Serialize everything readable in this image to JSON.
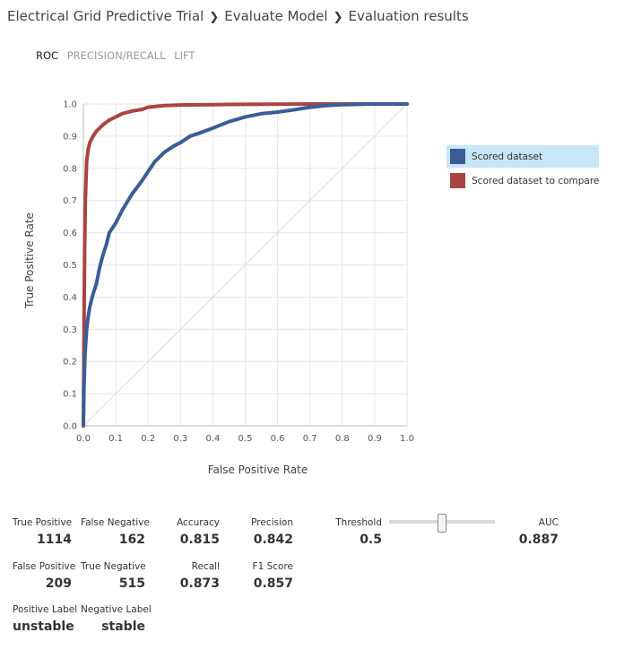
{
  "breadcrumb": [
    "Electrical Grid Predictive Trial",
    "Evaluate Model",
    "Evaluation results"
  ],
  "tabs": [
    {
      "label": "ROC",
      "active": true
    },
    {
      "label": "PRECISION/RECALL",
      "active": false
    },
    {
      "label": "LIFT",
      "active": false
    }
  ],
  "legend": [
    {
      "label": "Scored dataset",
      "color": "#3a5d96",
      "selected": true
    },
    {
      "label": "Scored dataset to compare",
      "color": "#a94442",
      "selected": false
    }
  ],
  "chart_data": {
    "type": "line",
    "xlabel": "False Positive Rate",
    "ylabel": "True Positive Rate",
    "xlim": [
      0,
      1
    ],
    "ylim": [
      0,
      1
    ],
    "xticks": [
      "0.0",
      "0.1",
      "0.2",
      "0.3",
      "0.4",
      "0.5",
      "0.6",
      "0.7",
      "0.8",
      "0.9",
      "1.0"
    ],
    "yticks": [
      "0.0",
      "0.1",
      "0.2",
      "0.3",
      "0.4",
      "0.5",
      "0.6",
      "0.7",
      "0.8",
      "0.9",
      "1.0"
    ],
    "grid": true,
    "legend_position": "right",
    "diagonal_reference": true,
    "series": [
      {
        "name": "Scored dataset",
        "color": "#3a5d96",
        "x": [
          0,
          0.002,
          0.005,
          0.01,
          0.015,
          0.02,
          0.03,
          0.04,
          0.05,
          0.06,
          0.07,
          0.08,
          0.1,
          0.12,
          0.15,
          0.18,
          0.2,
          0.22,
          0.25,
          0.28,
          0.3,
          0.33,
          0.36,
          0.4,
          0.45,
          0.5,
          0.55,
          0.6,
          0.65,
          0.7,
          0.75,
          0.8,
          0.85,
          0.9,
          1.0
        ],
        "y": [
          0,
          0.12,
          0.22,
          0.3,
          0.34,
          0.37,
          0.41,
          0.44,
          0.49,
          0.53,
          0.56,
          0.6,
          0.63,
          0.67,
          0.72,
          0.76,
          0.79,
          0.82,
          0.85,
          0.87,
          0.88,
          0.9,
          0.91,
          0.925,
          0.945,
          0.96,
          0.97,
          0.975,
          0.982,
          0.99,
          0.995,
          0.998,
          0.999,
          1.0,
          1.0
        ]
      },
      {
        "name": "Scored dataset to compare",
        "color": "#a94442",
        "x": [
          0,
          0.002,
          0.004,
          0.006,
          0.01,
          0.015,
          0.02,
          0.03,
          0.04,
          0.05,
          0.06,
          0.08,
          0.1,
          0.12,
          0.15,
          0.18,
          0.2,
          0.25,
          0.3,
          0.4,
          0.5,
          0.7,
          1.0
        ],
        "y": [
          0,
          0.3,
          0.55,
          0.7,
          0.82,
          0.86,
          0.88,
          0.9,
          0.915,
          0.925,
          0.935,
          0.95,
          0.96,
          0.97,
          0.978,
          0.983,
          0.99,
          0.995,
          0.997,
          0.998,
          0.999,
          1.0,
          1.0
        ]
      }
    ]
  },
  "stats": {
    "true_positive_label": "True Positive",
    "true_positive_value": "1114",
    "false_negative_label": "False Negative",
    "false_negative_value": "162",
    "accuracy_label": "Accuracy",
    "accuracy_value": "0.815",
    "precision_label": "Precision",
    "precision_value": "0.842",
    "threshold_label": "Threshold",
    "threshold_value": "0.5",
    "auc_label": "AUC",
    "auc_value": "0.887",
    "false_positive_label": "False Positive",
    "false_positive_value": "209",
    "true_negative_label": "True Negative",
    "true_negative_value": "515",
    "recall_label": "Recall",
    "recall_value": "0.873",
    "f1_label": "F1 Score",
    "f1_value": "0.857",
    "positive_label_label": "Positive Label",
    "positive_label_value": "unstable",
    "negative_label_label": "Negative Label",
    "negative_label_value": "stable"
  },
  "threshold_slider": {
    "value": 0.5
  }
}
